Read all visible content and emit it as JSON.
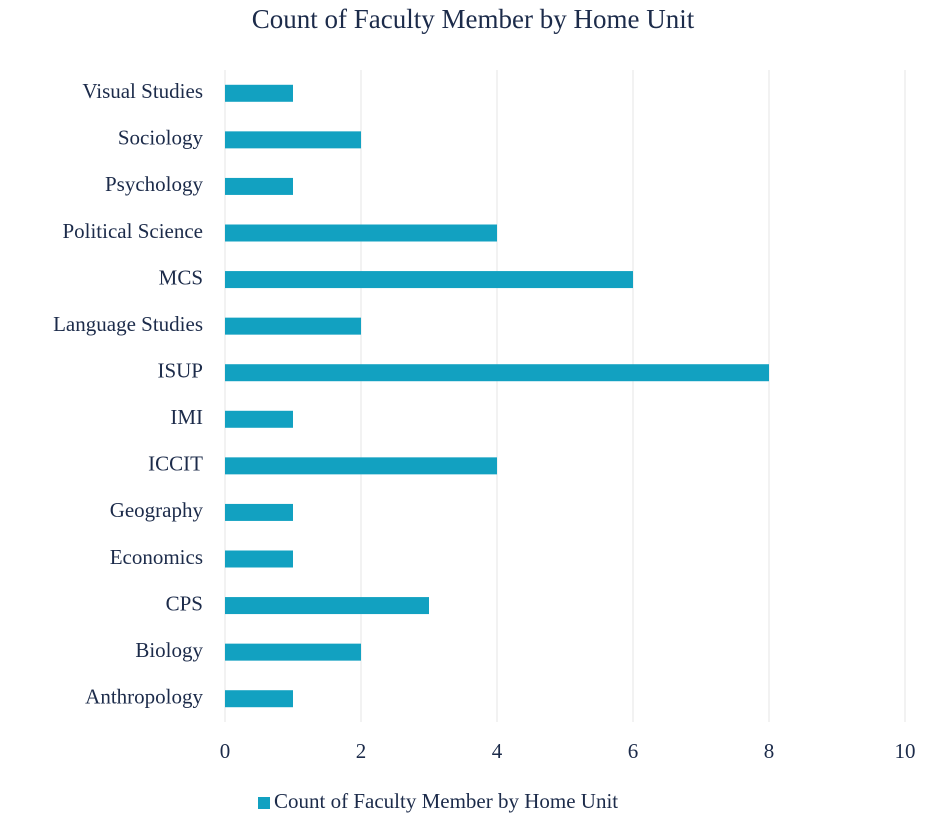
{
  "chart_data": {
    "type": "bar",
    "orientation": "horizontal",
    "title": "Count of Faculty Member by Home Unit",
    "categories": [
      "Visual Studies",
      "Sociology",
      "Psychology",
      "Political Science",
      "MCS",
      "Language Studies",
      "ISUP",
      "IMI",
      "ICCIT",
      "Geography",
      "Economics",
      "CPS",
      "Biology",
      "Anthropology"
    ],
    "series": [
      {
        "name": "Count of Faculty Member by Home Unit",
        "color": "#12a1c1",
        "values": [
          1,
          2,
          1,
          4,
          6,
          2,
          8,
          1,
          4,
          1,
          1,
          3,
          2,
          1
        ]
      }
    ],
    "xlim": [
      0,
      10
    ],
    "xticks": [
      0,
      2,
      4,
      6,
      8,
      10
    ],
    "grid": true,
    "legend": "bottom"
  }
}
